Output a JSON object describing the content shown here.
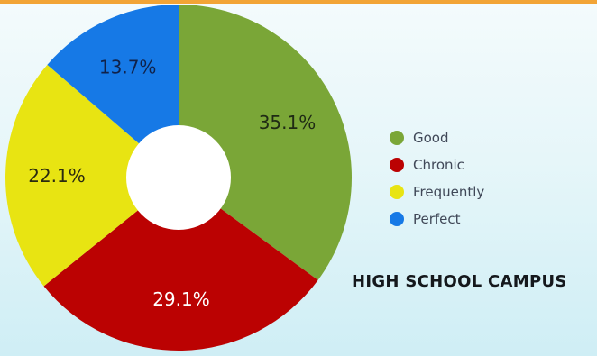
{
  "chart_data": {
    "type": "pie",
    "variant": "donut",
    "categories": [
      "Good",
      "Chronic",
      "Frequently",
      "Perfect"
    ],
    "values": [
      35.1,
      29.1,
      22.1,
      13.7
    ],
    "labels": [
      "35.1%",
      "29.1%",
      "22.1%",
      "13.7%"
    ],
    "colors": [
      "#7aa637",
      "#bb0202",
      "#e8e412",
      "#1679e6"
    ],
    "label_colors": [
      "#1f2a14",
      "#ffffff",
      "#2a2a10",
      "#10224a"
    ],
    "legend_placement": "right",
    "title": "HIGH SCHOOL CAMPUS"
  }
}
